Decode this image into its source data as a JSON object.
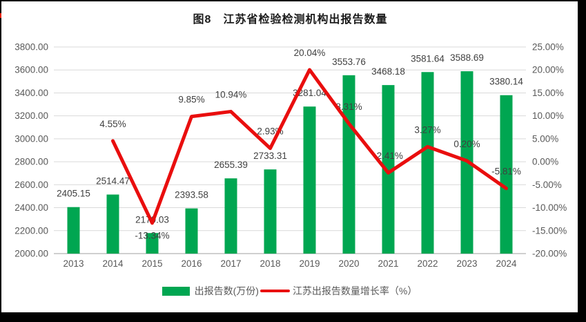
{
  "title": "图8　江苏省检验检测机构出报告数量",
  "chart_data": {
    "type": "bar",
    "subtype": "bar+line combo, dual axis",
    "title": "图8　江苏省检验检测机构出报告数量",
    "categories": [
      "2013",
      "2014",
      "2015",
      "2016",
      "2017",
      "2018",
      "2019",
      "2020",
      "2021",
      "2022",
      "2023",
      "2024"
    ],
    "series": [
      {
        "name": "出报告数(万份)",
        "type": "bar",
        "axis": "left",
        "color": "#00A651",
        "values": [
          2405.15,
          2514.47,
          2179.03,
          2393.58,
          2655.39,
          2733.31,
          3281.04,
          3553.76,
          3468.18,
          3581.64,
          3588.69,
          3380.14
        ],
        "labels": [
          "2405.15",
          "2514.47",
          "2179.03",
          "2393.58",
          "2655.39",
          "2733.31",
          "3281.04",
          "3553.76",
          "3468.18",
          "3581.64",
          "3588.69",
          "3380.14"
        ]
      },
      {
        "name": "江苏出报告数量增长率（%）",
        "type": "line",
        "axis": "right",
        "color": "#E90E0E",
        "values": [
          null,
          4.55,
          -13.34,
          9.85,
          10.94,
          2.93,
          20.04,
          8.31,
          -2.41,
          3.27,
          0.2,
          -5.81
        ],
        "labels": [
          "",
          "4.55%",
          "-13.34%",
          "9.85%",
          "10.94%",
          "2.93%",
          "20.04%",
          "8.31%",
          "-2.41%",
          "3.27%",
          "0.20%",
          "-5.81%"
        ],
        "label_positions": [
          "",
          "above",
          "below",
          "above",
          "above",
          "above",
          "above",
          "above",
          "above",
          "above",
          "above",
          "above"
        ]
      }
    ],
    "left_axis": {
      "min": 2000,
      "max": 3800,
      "step": 200,
      "ticks": [
        "2000.00",
        "2200.00",
        "2400.00",
        "2600.00",
        "2800.00",
        "3000.00",
        "3200.00",
        "3400.00",
        "3600.00",
        "3800.00"
      ]
    },
    "right_axis": {
      "min": -20,
      "max": 25,
      "step": 5,
      "ticks": [
        "-20.00%",
        "-15.00%",
        "-10.00%",
        "-5.00%",
        "0.00%",
        "5.00%",
        "10.00%",
        "15.00%",
        "20.00%",
        "25.00%"
      ]
    },
    "grid": true,
    "legend_position": "bottom"
  },
  "legend": {
    "bar_label": "出报告数(万份)",
    "line_label": "江苏出报告数量增长率（%）"
  },
  "colors": {
    "bar": "#00A651",
    "line": "#E90E0E",
    "grid": "#D9D9D9",
    "baseline": "#BFBFBF",
    "axis_text": "#595959",
    "label_text": "#404040",
    "title_text": "#1A1A1A",
    "frame": "#000000",
    "panel": "#FFFFFF",
    "edge_mark": "#E8250F"
  }
}
